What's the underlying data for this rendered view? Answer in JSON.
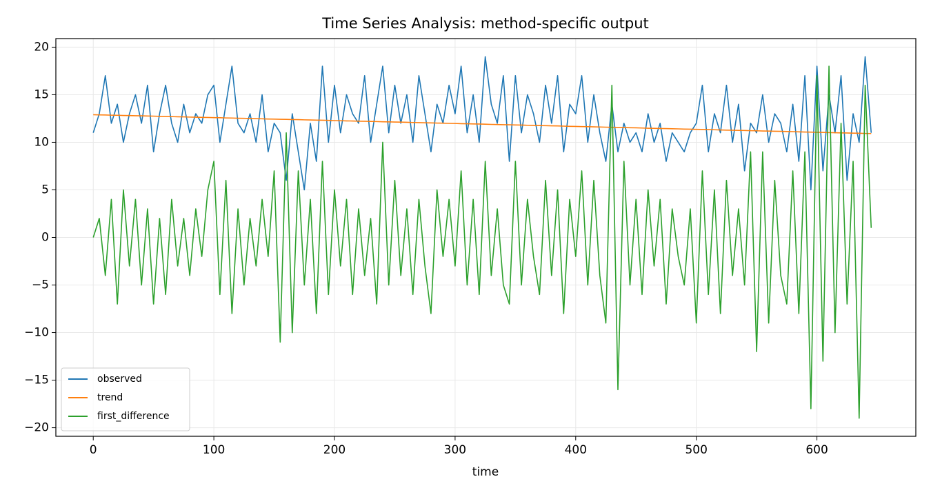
{
  "chart_data": {
    "type": "line",
    "title": "Time Series Analysis: method-specific output",
    "x_label": "time",
    "x": [
      0,
      5,
      10,
      15,
      20,
      25,
      30,
      35,
      40,
      45,
      50,
      55,
      60,
      65,
      70,
      75,
      80,
      85,
      90,
      95,
      100,
      105,
      110,
      115,
      120,
      125,
      130,
      135,
      140,
      145,
      150,
      155,
      160,
      165,
      170,
      175,
      180,
      185,
      190,
      195,
      200,
      205,
      210,
      215,
      220,
      225,
      230,
      235,
      240,
      245,
      250,
      255,
      260,
      265,
      270,
      275,
      280,
      285,
      290,
      295,
      300,
      305,
      310,
      315,
      320,
      325,
      330,
      335,
      340,
      345,
      350,
      355,
      360,
      365,
      370,
      375,
      380,
      385,
      390,
      395,
      400,
      405,
      410,
      415,
      420,
      425,
      430,
      435,
      440,
      445,
      450,
      455,
      460,
      465,
      470,
      475,
      480,
      485,
      490,
      495,
      500,
      505,
      510,
      515,
      520,
      525,
      530,
      535,
      540,
      545,
      550,
      555,
      560,
      565,
      570,
      575,
      580,
      585,
      590,
      595,
      600,
      605,
      610,
      615,
      620,
      625,
      630,
      635,
      640,
      645
    ],
    "series": [
      {
        "name": "observed",
        "color": "#1f77b4",
        "values": [
          11,
          13,
          17,
          12,
          14,
          10,
          13,
          15,
          12,
          16,
          9,
          13,
          16,
          12,
          10,
          14,
          11,
          13,
          12,
          15,
          16,
          10,
          14,
          18,
          12,
          11,
          13,
          10,
          15,
          9,
          12,
          11,
          6,
          13,
          9,
          5,
          12,
          8,
          18,
          10,
          16,
          11,
          15,
          13,
          12,
          17,
          10,
          14,
          18,
          11,
          16,
          12,
          15,
          10,
          17,
          13,
          9,
          14,
          12,
          16,
          13,
          18,
          11,
          15,
          10,
          19,
          14,
          12,
          17,
          8,
          17,
          11,
          15,
          13,
          10,
          16,
          12,
          17,
          9,
          14,
          13,
          17,
          10,
          15,
          11,
          8,
          14,
          9,
          12,
          10,
          11,
          9,
          13,
          10,
          12,
          8,
          11,
          10,
          9,
          11,
          12,
          16,
          9,
          13,
          11,
          16,
          10,
          14,
          7,
          12,
          11,
          15,
          10,
          13,
          12,
          9,
          14,
          8,
          17,
          5,
          18,
          7,
          15,
          11,
          17,
          6,
          13,
          10,
          19,
          11
        ]
      },
      {
        "name": "trend",
        "color": "#ff7f0e",
        "values": [
          12.9,
          12.88,
          12.87,
          12.85,
          12.84,
          12.82,
          12.81,
          12.79,
          12.78,
          12.76,
          12.75,
          12.73,
          12.72,
          12.7,
          12.68,
          12.67,
          12.65,
          12.64,
          12.62,
          12.61,
          12.59,
          12.58,
          12.56,
          12.55,
          12.53,
          12.52,
          12.5,
          12.48,
          12.47,
          12.45,
          12.44,
          12.42,
          12.41,
          12.39,
          12.38,
          12.36,
          12.35,
          12.33,
          12.32,
          12.3,
          12.28,
          12.27,
          12.25,
          12.24,
          12.22,
          12.21,
          12.19,
          12.18,
          12.16,
          12.15,
          12.13,
          12.12,
          12.1,
          12.08,
          12.07,
          12.05,
          12.04,
          12.02,
          12.01,
          11.99,
          11.98,
          11.96,
          11.95,
          11.93,
          11.92,
          11.9,
          11.88,
          11.87,
          11.85,
          11.84,
          11.82,
          11.81,
          11.79,
          11.78,
          11.76,
          11.75,
          11.73,
          11.72,
          11.7,
          11.68,
          11.67,
          11.65,
          11.64,
          11.62,
          11.61,
          11.59,
          11.58,
          11.56,
          11.55,
          11.53,
          11.52,
          11.5,
          11.48,
          11.47,
          11.45,
          11.44,
          11.42,
          11.41,
          11.39,
          11.38,
          11.36,
          11.35,
          11.33,
          11.32,
          11.3,
          11.28,
          11.27,
          11.25,
          11.24,
          11.22,
          11.21,
          11.19,
          11.18,
          11.16,
          11.15,
          11.13,
          11.12,
          11.1,
          11.08,
          11.07,
          11.05,
          11.04,
          11.02,
          11.01,
          10.99,
          10.98,
          10.96,
          10.95,
          10.93,
          10.92
        ]
      },
      {
        "name": "first_difference",
        "color": "#2ca02c",
        "values": [
          0,
          2,
          -4,
          4,
          -7,
          5,
          -3,
          4,
          -5,
          3,
          -7,
          2,
          -6,
          4,
          -3,
          2,
          -4,
          3,
          -2,
          5,
          8,
          -6,
          6,
          -8,
          3,
          -5,
          2,
          -3,
          4,
          -2,
          7,
          -11,
          11,
          -10,
          7,
          -5,
          4,
          -8,
          8,
          -6,
          5,
          -3,
          4,
          -6,
          3,
          -4,
          2,
          -7,
          10,
          -5,
          6,
          -4,
          3,
          -6,
          4,
          -3,
          -8,
          5,
          -2,
          4,
          -3,
          7,
          -5,
          4,
          -6,
          8,
          -4,
          3,
          -5,
          -7,
          8,
          -5,
          4,
          -2,
          -6,
          6,
          -4,
          5,
          -8,
          4,
          -2,
          7,
          -5,
          6,
          -4,
          -9,
          16,
          -16,
          8,
          -5,
          4,
          -6,
          5,
          -3,
          4,
          -7,
          3,
          -2,
          -5,
          3,
          -9,
          7,
          -6,
          5,
          -8,
          6,
          -4,
          3,
          -5,
          9,
          -12,
          9,
          -9,
          6,
          -4,
          -7,
          7,
          -8,
          9,
          -18,
          17,
          -13,
          18,
          -10,
          12,
          -7,
          8,
          -19,
          16,
          1
        ]
      }
    ],
    "xlim": [
      -31,
      682
    ],
    "ylim": [
      -20.9,
      20.9
    ],
    "xticks": [
      0,
      100,
      200,
      300,
      400,
      500,
      600
    ],
    "yticks": [
      {
        "value": -20,
        "label": "−20"
      },
      {
        "value": -15,
        "label": "−15"
      },
      {
        "value": -10,
        "label": "−10"
      },
      {
        "value": -5,
        "label": "−5"
      },
      0,
      5,
      10,
      15,
      20
    ],
    "grid": true,
    "legend": "lower left"
  }
}
